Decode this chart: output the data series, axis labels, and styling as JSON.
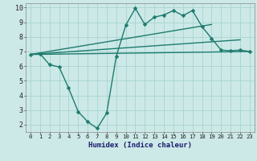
{
  "bg_color": "#cce9e7",
  "grid_color": "#a8d4d0",
  "line_color": "#1e7b6e",
  "xlabel": "Humidex (Indice chaleur)",
  "xlim": [
    -0.5,
    23.5
  ],
  "ylim": [
    1.5,
    10.3
  ],
  "xticks": [
    0,
    1,
    2,
    3,
    4,
    5,
    6,
    7,
    8,
    9,
    10,
    11,
    12,
    13,
    14,
    15,
    16,
    17,
    18,
    19,
    20,
    21,
    22,
    23
  ],
  "yticks": [
    2,
    3,
    4,
    5,
    6,
    7,
    8,
    9,
    10
  ],
  "series_main": {
    "x": [
      0,
      1,
      2,
      3,
      4,
      5,
      6,
      7,
      8,
      9,
      10,
      11,
      12,
      13,
      14,
      15,
      16,
      17,
      18,
      19,
      20,
      21,
      22,
      23
    ],
    "y": [
      6.8,
      6.85,
      6.1,
      5.95,
      4.5,
      2.9,
      2.2,
      1.75,
      2.8,
      6.65,
      8.8,
      9.95,
      8.85,
      9.35,
      9.5,
      9.8,
      9.45,
      9.8,
      8.7,
      7.9,
      7.1,
      7.05,
      7.1,
      7.0
    ]
  },
  "series_lines": [
    {
      "x": [
        0,
        19
      ],
      "y": [
        6.8,
        8.85
      ]
    },
    {
      "x": [
        0,
        22
      ],
      "y": [
        6.8,
        7.8
      ]
    },
    {
      "x": [
        0,
        23
      ],
      "y": [
        6.8,
        7.0
      ]
    }
  ],
  "xlabel_color": "#1a1a6e",
  "xlabel_fontsize": 6.5,
  "tick_fontsize_x": 5.2,
  "tick_fontsize_y": 6.0,
  "marker": "D",
  "markersize": 2.5,
  "linewidth": 1.0
}
